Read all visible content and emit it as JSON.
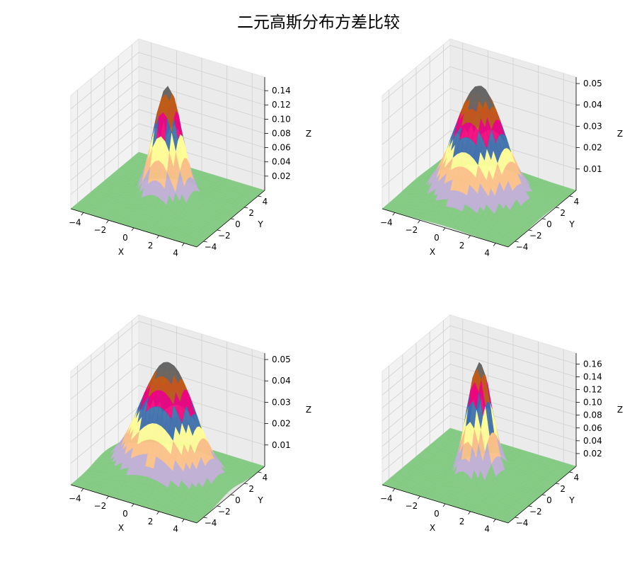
{
  "title": "二元高斯分布方差比较",
  "chart_data": [
    {
      "type": "surface3d",
      "title": "",
      "xlabel": "X",
      "ylabel": "Y",
      "zlabel": "Z",
      "xlim": [
        -5,
        5
      ],
      "ylim": [
        -5,
        5
      ],
      "xticks": [
        "−4",
        "−2",
        "0",
        "2",
        "4"
      ],
      "yticks": [
        "−4",
        "−2",
        "0",
        "2",
        "4"
      ],
      "zticks": [
        "0.02",
        "0.04",
        "0.06",
        "0.08",
        "0.10",
        "0.12",
        "0.14"
      ],
      "zticks_values": [
        0.02,
        0.04,
        0.06,
        0.08,
        0.1,
        0.12,
        0.14
      ],
      "zmax": 0.159,
      "sigma_x": 1.0,
      "sigma_y": 1.0,
      "rho": 0,
      "colormap": "Accent"
    },
    {
      "type": "surface3d",
      "title": "",
      "xlabel": "X",
      "ylabel": "Y",
      "zlabel": "Z",
      "xlim": [
        -5,
        5
      ],
      "ylim": [
        -5,
        5
      ],
      "xticks": [
        "−4",
        "−2",
        "0",
        "2",
        "4"
      ],
      "yticks": [
        "−4",
        "−2",
        "0",
        "2",
        "4"
      ],
      "zticks": [
        "0.01",
        "0.02",
        "0.03",
        "0.04",
        "0.05"
      ],
      "zticks_values": [
        0.01,
        0.02,
        0.03,
        0.04,
        0.05
      ],
      "zmax": 0.053,
      "sigma_x": 1.73,
      "sigma_y": 1.73,
      "rho": 0,
      "colormap": "Accent"
    },
    {
      "type": "surface3d",
      "title": "",
      "xlabel": "X",
      "ylabel": "Y",
      "zlabel": "Z",
      "xlim": [
        -5,
        5
      ],
      "ylim": [
        -5,
        5
      ],
      "xticks": [
        "−4",
        "−2",
        "0",
        "2",
        "4"
      ],
      "yticks": [
        "−4",
        "−2",
        "0",
        "2",
        "4"
      ],
      "zticks": [
        "0.01",
        "0.02",
        "0.03",
        "0.04",
        "0.05"
      ],
      "zticks_values": [
        0.01,
        0.02,
        0.03,
        0.04,
        0.05
      ],
      "zmax": 0.053,
      "sigma_x": 2.0,
      "sigma_y": 1.5,
      "rho": 0,
      "colormap": "Accent"
    },
    {
      "type": "surface3d",
      "title": "",
      "xlabel": "X",
      "ylabel": "Y",
      "zlabel": "Z",
      "xlim": [
        -5,
        5
      ],
      "ylim": [
        -5,
        5
      ],
      "xticks": [
        "−4",
        "−2",
        "0",
        "2",
        "4"
      ],
      "yticks": [
        "−4",
        "−2",
        "0",
        "2",
        "4"
      ],
      "zticks": [
        "0.02",
        "0.04",
        "0.06",
        "0.08",
        "0.10",
        "0.12",
        "0.14",
        "0.16"
      ],
      "zticks_values": [
        0.02,
        0.04,
        0.06,
        0.08,
        0.1,
        0.12,
        0.14,
        0.16
      ],
      "zmax": 0.177,
      "sigma_x": 0.75,
      "sigma_y": 1.2,
      "rho": 0,
      "colormap": "Accent"
    }
  ]
}
